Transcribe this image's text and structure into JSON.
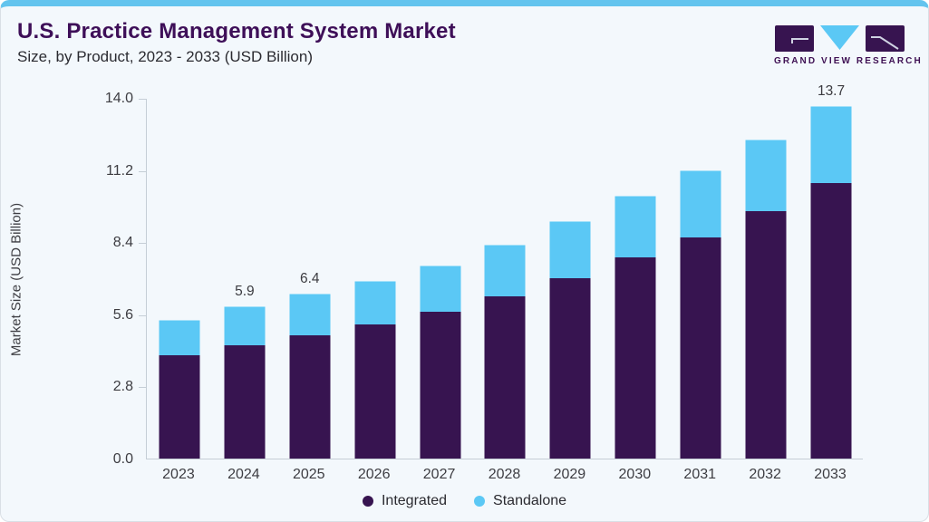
{
  "header": {
    "title": "U.S. Practice Management System Market",
    "subtitle": "Size, by Product, 2023 - 2033 (USD Billion)",
    "brand": "GRAND VIEW RESEARCH"
  },
  "colors": {
    "integrated": "#371450",
    "standalone": "#5BC8F5",
    "accent_top_border": "#63C4EE",
    "card_background": "#F3F8FC",
    "title_purple": "#3E0F58",
    "axis_line": "#C5CED6",
    "text_dark": "#2B2B31"
  },
  "chart_data": {
    "type": "bar",
    "stacked": true,
    "title": "U.S. Practice Management System Market",
    "subtitle": "Size, by Product, 2023 - 2033 (USD Billion)",
    "xlabel": "",
    "ylabel": "Market Size (USD Billion)",
    "ylim": [
      0,
      14
    ],
    "yticks": [
      "0.0",
      "2.8",
      "5.6",
      "8.4",
      "11.2",
      "14.0"
    ],
    "grid": false,
    "legend_position": "bottom",
    "categories": [
      "2023",
      "2024",
      "2025",
      "2026",
      "2027",
      "2028",
      "2029",
      "2030",
      "2031",
      "2032",
      "2033"
    ],
    "series": [
      {
        "name": "Integrated",
        "color": "#371450",
        "values": [
          4.0,
          4.4,
          4.8,
          5.2,
          5.7,
          6.3,
          7.0,
          7.8,
          8.6,
          9.6,
          10.7
        ]
      },
      {
        "name": "Standalone",
        "color": "#5BC8F5",
        "values": [
          1.4,
          1.5,
          1.6,
          1.7,
          1.8,
          2.0,
          2.2,
          2.4,
          2.6,
          2.8,
          3.0
        ]
      }
    ],
    "total_labels": [
      "",
      "5.9",
      "6.4",
      "",
      "",
      "",
      "",
      "",
      "",
      "",
      "13.7"
    ]
  }
}
